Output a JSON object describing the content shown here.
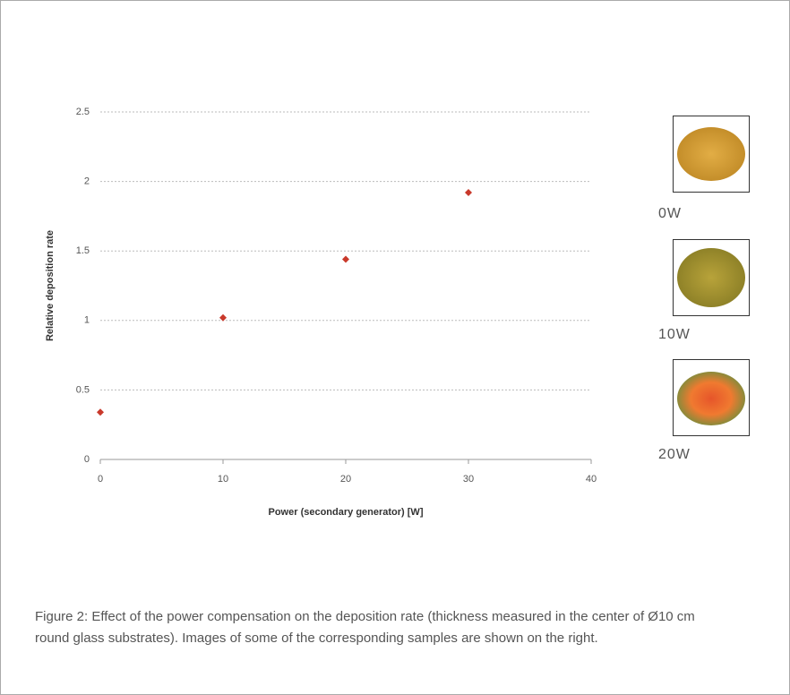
{
  "chart_data": {
    "type": "scatter",
    "xlabel": "Power (secondary generator) [W]",
    "ylabel": "Relative deposition rate",
    "x": [
      0,
      10,
      20,
      30
    ],
    "values": [
      0.34,
      1.02,
      1.44,
      1.92
    ],
    "color": "#c9392b",
    "xlim": [
      0,
      40
    ],
    "ylim": [
      0,
      2.5
    ],
    "xticks": [
      0,
      10,
      20,
      30,
      40
    ],
    "yticks": [
      0,
      0.5,
      1,
      1.5,
      2,
      2.5
    ],
    "grid": true
  },
  "samples": [
    {
      "label": "0W"
    },
    {
      "label": "10W"
    },
    {
      "label": "20W"
    }
  ],
  "caption": "Figure 2: Effect of the power compensation on the deposition rate (thickness measured in the center of Ø10 cm round glass substrates). Images of some of the corresponding samples are shown on the right."
}
